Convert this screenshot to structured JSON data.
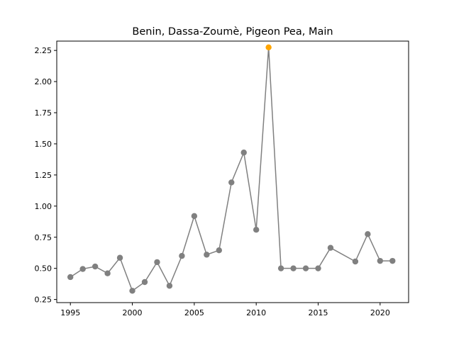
{
  "chart_data": {
    "type": "line",
    "title": "Benin, Dassa-Zoumè, Pigeon Pea, Main",
    "xlabel": "",
    "ylabel": "",
    "xlim": [
      1993.9,
      2022.3
    ],
    "ylim": [
      0.225,
      2.325
    ],
    "x_ticks": [
      1995,
      2000,
      2005,
      2010,
      2015,
      2020
    ],
    "x_tick_labels": [
      "1995",
      "2000",
      "2005",
      "2010",
      "2015",
      "2020"
    ],
    "y_ticks": [
      0.25,
      0.5,
      0.75,
      1.0,
      1.25,
      1.5,
      1.75,
      2.0,
      2.25
    ],
    "y_tick_labels": [
      "0.25",
      "0.50",
      "0.75",
      "1.00",
      "1.25",
      "1.50",
      "1.75",
      "2.00",
      "2.25"
    ],
    "grid": false,
    "series": [
      {
        "color": "#808080",
        "x": [
          1995,
          1996,
          1997,
          1998,
          1999,
          2000,
          2001,
          2002,
          2003,
          2004,
          2005,
          2006,
          2007,
          2008,
          2009,
          2010,
          2011,
          2012,
          2013,
          2014,
          2015,
          2016,
          2018,
          2019,
          2020,
          2021
        ],
        "y": [
          0.43,
          0.495,
          0.515,
          0.46,
          0.585,
          0.32,
          0.39,
          0.55,
          0.36,
          0.6,
          0.92,
          0.61,
          0.645,
          1.19,
          1.43,
          0.81,
          2.275,
          0.5,
          0.5,
          0.5,
          0.5,
          0.665,
          0.555,
          0.775,
          0.56,
          0.56
        ]
      }
    ],
    "highlight": {
      "x": 2011,
      "y": 2.275,
      "color": "#ffa500"
    }
  }
}
